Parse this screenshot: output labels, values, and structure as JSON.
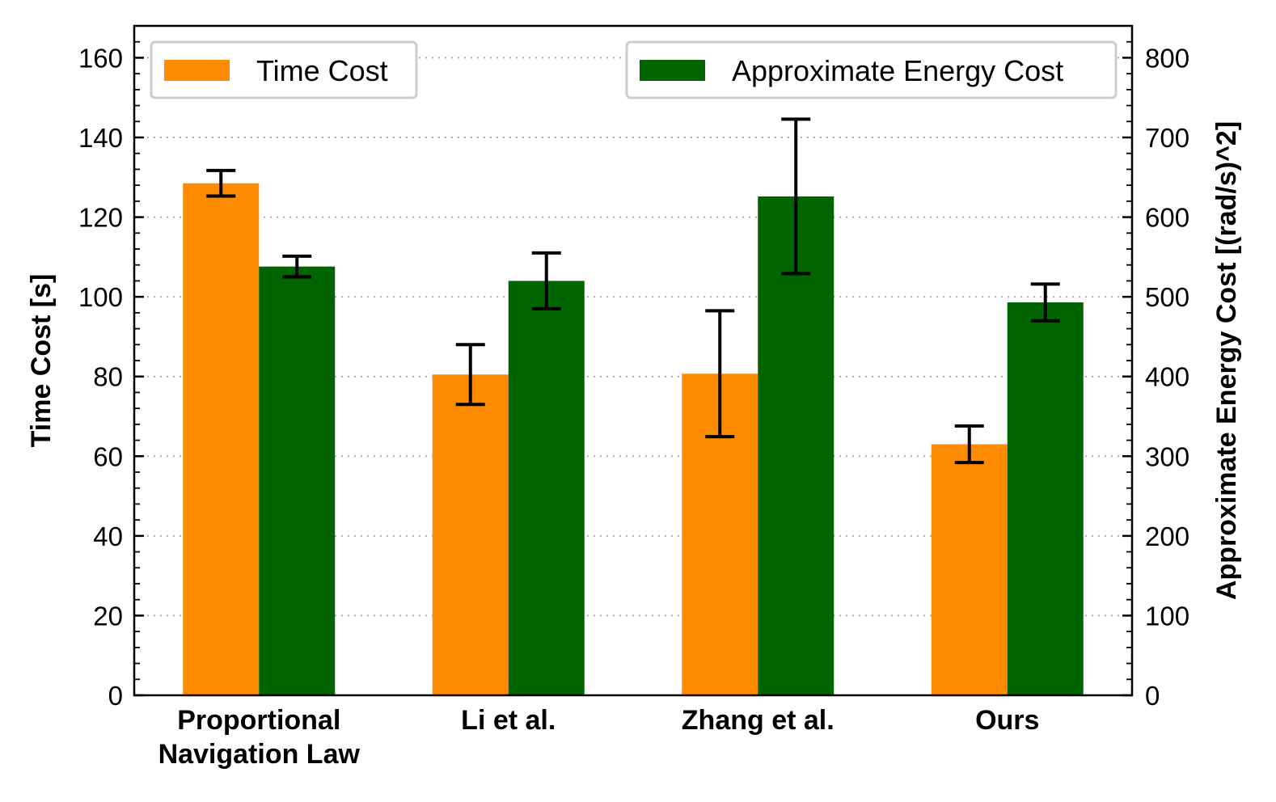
{
  "chart_data": {
    "type": "bar",
    "categories": [
      [
        "Proportional",
        "Navigation Law"
      ],
      [
        "Li et al."
      ],
      [
        "Zhang et al."
      ],
      [
        "Ours"
      ]
    ],
    "series": [
      {
        "name": "Time Cost",
        "axis": "left",
        "color": "#ff8c00",
        "values": [
          128.5,
          80.5,
          80.7,
          63.0
        ],
        "errors": [
          3.2,
          7.5,
          15.8,
          4.6
        ]
      },
      {
        "name": "Approximate Energy Cost",
        "axis": "right",
        "color": "#006400",
        "values": [
          538,
          520,
          626,
          493
        ],
        "errors": [
          13,
          35,
          97,
          23
        ]
      }
    ],
    "ylabel": "Time Cost [s]",
    "y2label": "Approximate Energy Cost [(rad/s)^2]",
    "ylim": [
      0,
      168
    ],
    "y2lim": [
      0,
      840
    ],
    "yticks": [
      0,
      20,
      40,
      60,
      80,
      100,
      120,
      140,
      160
    ],
    "y2ticks": [
      0,
      100,
      200,
      300,
      400,
      500,
      600,
      700,
      800
    ],
    "grid": "horizontal dotted",
    "legend": [
      "top-left",
      "top-right"
    ]
  }
}
